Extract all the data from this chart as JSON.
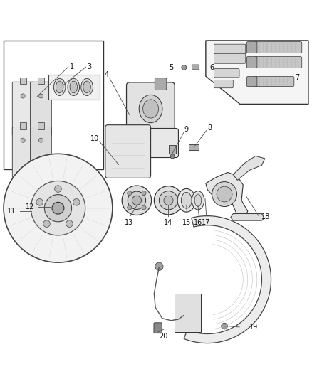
{
  "bg_color": "#ffffff",
  "line_color": "#333333",
  "label_color": "#111111",
  "leader_color": "#555555",
  "leader_lw": 0.65,
  "label_fontsize": 7.0
}
